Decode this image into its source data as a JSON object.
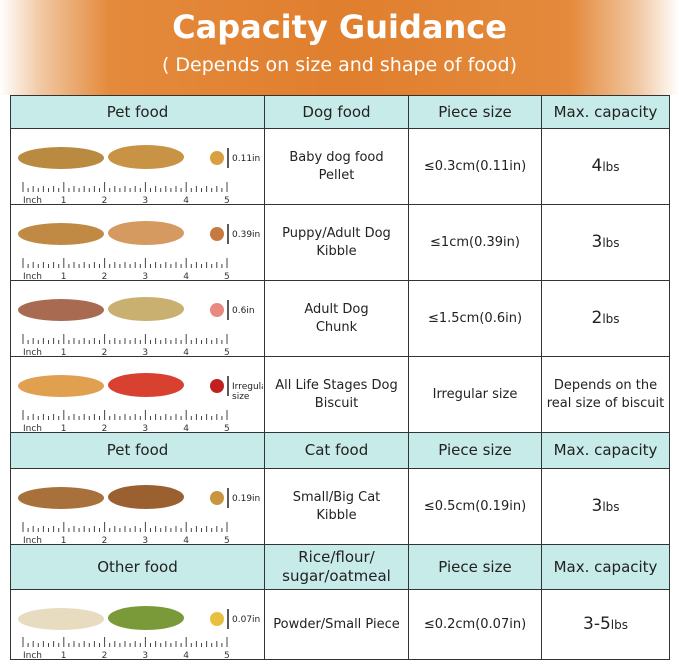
{
  "title": "Capacity Guidance",
  "subtitle": "( Depends on size and shape of food)",
  "ruler": {
    "unit": "Inch",
    "ticks": [
      "1",
      "2",
      "3",
      "4",
      "5"
    ]
  },
  "colors": {
    "accent": "#e07f2e",
    "header_bg": "#c7ebe9"
  },
  "sections": [
    {
      "header": {
        "c1": "Pet food",
        "c2": "Dog food",
        "c3": "Piece size",
        "c4": "Max. capacity"
      },
      "rows": [
        {
          "size_label": "0.11in",
          "food": "Baby dog food\nPellet",
          "piece": "≤0.3cm(0.11in)",
          "cap_num": "4",
          "cap_unit": "lbs",
          "colors": [
            "#b98a3f",
            "#c99345",
            "#d9a040"
          ]
        },
        {
          "size_label": "0.39in",
          "food": "Puppy/Adult Dog\nKibble",
          "piece": "≤1cm(0.39in)",
          "cap_num": "3",
          "cap_unit": "lbs",
          "colors": [
            "#c08a45",
            "#d49a60",
            "#c77a40"
          ]
        },
        {
          "size_label": "0.6in",
          "food": "Adult Dog\nChunk",
          "piece": "≤1.5cm(0.6in)",
          "cap_num": "2",
          "cap_unit": "lbs",
          "colors": [
            "#a86a50",
            "#c9b070",
            "#e88a80"
          ]
        },
        {
          "size_label": "Irregular\nsize",
          "food": "All Life Stages Dog\nBiscuit",
          "piece": "Irregular size",
          "cap_text": "Depends on the\nreal size of biscuit",
          "colors": [
            "#e0a050",
            "#d84030",
            "#c02020"
          ]
        }
      ]
    },
    {
      "header": {
        "c1": "Pet food",
        "c2": "Cat food",
        "c3": "Piece size",
        "c4": "Max. capacity"
      },
      "rows": [
        {
          "size_label": "0.19in",
          "food": "Small/Big Cat\nKibble",
          "piece": "≤0.5cm(0.19in)",
          "cap_num": "3",
          "cap_unit": "lbs",
          "colors": [
            "#a8703a",
            "#9a6030",
            "#c9953f"
          ]
        }
      ]
    },
    {
      "header": {
        "c1": "Other food",
        "c2": "Rice/flour/\nsugar/oatmeal",
        "c3": "Piece size",
        "c4": "Max. capacity"
      },
      "rows": [
        {
          "size_label": "0.07in",
          "food": "Powder/Small Piece",
          "piece": "≤0.2cm(0.07in)",
          "cap_num": "3-5",
          "cap_unit": "lbs",
          "colors": [
            "#e8dcc0",
            "#7a9a3a",
            "#e8c040"
          ]
        }
      ]
    }
  ]
}
